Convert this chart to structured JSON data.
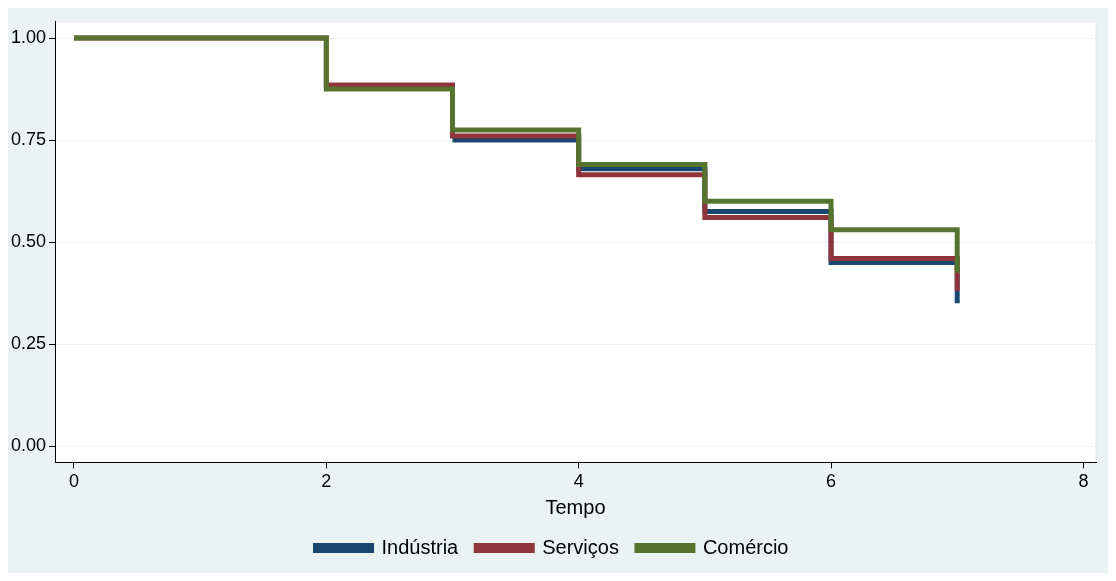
{
  "chart_data": {
    "type": "step",
    "xlabel": "Tempo",
    "xlim": [
      -0.15,
      8.1
    ],
    "xticks": [
      0,
      2,
      4,
      6,
      8
    ],
    "ylim": [
      -0.04,
      1.04
    ],
    "yticks": [
      {
        "value": 0,
        "label": "0.00"
      },
      {
        "value": 0.25,
        "label": "0.25"
      },
      {
        "value": 0.5,
        "label": "0.50"
      },
      {
        "value": 0.75,
        "label": "0.75"
      },
      {
        "value": 1,
        "label": "1.00"
      }
    ],
    "grid": "y",
    "legend": "bottom",
    "x": [
      0,
      2,
      3,
      4,
      5,
      6,
      7
    ],
    "series": [
      {
        "name": "Indústria",
        "color": "#1a476f",
        "values": [
          null,
          null,
          0.75,
          0.68,
          0.575,
          0.45,
          0.35
        ]
      },
      {
        "name": "Serviços",
        "color": "#90353b",
        "values": [
          1,
          0.885,
          0.76,
          0.665,
          0.56,
          0.46,
          0.38
        ]
      },
      {
        "name": "Comércio",
        "color": "#55752f",
        "values": [
          1,
          0.875,
          0.775,
          0.69,
          0.6,
          0.53,
          0.425
        ]
      }
    ]
  }
}
